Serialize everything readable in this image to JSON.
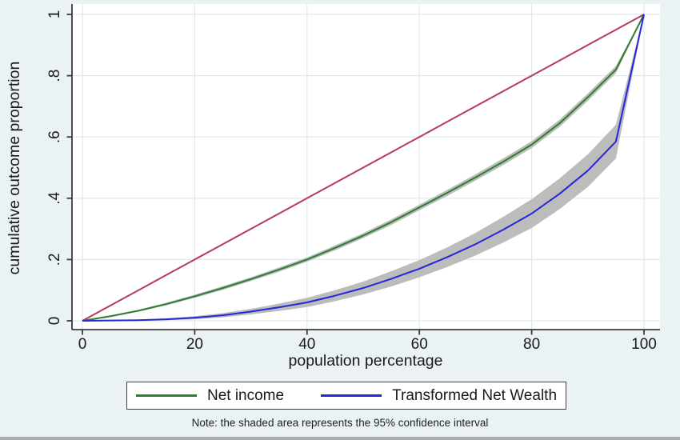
{
  "note": "Note: the shaded area represents the 95% confidence interval",
  "legend": {
    "items": [
      {
        "label": "Net income",
        "color": "#2f7d2f"
      },
      {
        "label": "Transformed Net Wealth",
        "color": "#2626d9"
      }
    ]
  },
  "colors": {
    "background": "#ebf2f4",
    "plot_background": "#ffffff",
    "grid": "#dfe9ed",
    "axis": "#3c3c3c",
    "text": "#1a1a1a",
    "ci_band": "#bcbcbc",
    "bottom_strip": "#a9adb0"
  },
  "chart_data": {
    "type": "line",
    "title": "",
    "xlabel": "population percentage",
    "ylabel": "cumulative outcome proportion",
    "xlim": [
      0,
      100
    ],
    "ylim": [
      0,
      1
    ],
    "grid": true,
    "legend_position": "below",
    "x_ticks": {
      "values": [
        0,
        20,
        40,
        60,
        80,
        100
      ],
      "labels": [
        "0",
        "20",
        "40",
        "60",
        "80",
        "100"
      ]
    },
    "y_ticks": {
      "values": [
        0,
        0.2,
        0.4,
        0.6,
        0.8,
        1
      ],
      "labels": [
        "0",
        ".2",
        ".4",
        ".6",
        ".8",
        "1"
      ]
    },
    "x": [
      0,
      5,
      10,
      15,
      20,
      25,
      30,
      35,
      40,
      45,
      50,
      55,
      60,
      65,
      70,
      75,
      80,
      85,
      90,
      95,
      100
    ],
    "series": [
      {
        "name": "Equality line",
        "color": "#b5395a",
        "in_legend": false,
        "values": [
          0,
          0.05,
          0.1,
          0.15,
          0.2,
          0.25,
          0.3,
          0.35,
          0.4,
          0.45,
          0.5,
          0.55,
          0.6,
          0.65,
          0.7,
          0.75,
          0.8,
          0.85,
          0.9,
          0.95,
          1
        ]
      },
      {
        "name": "Net income",
        "color": "#2f7d2f",
        "in_legend": true,
        "values": [
          0,
          0.015,
          0.033,
          0.055,
          0.08,
          0.107,
          0.136,
          0.167,
          0.2,
          0.238,
          0.278,
          0.322,
          0.37,
          0.418,
          0.468,
          0.52,
          0.575,
          0.645,
          0.73,
          0.82,
          1
        ],
        "ci_halfwidth": [
          0,
          0.002,
          0.003,
          0.004,
          0.005,
          0.006,
          0.006,
          0.007,
          0.007,
          0.008,
          0.008,
          0.009,
          0.009,
          0.01,
          0.01,
          0.011,
          0.011,
          0.012,
          0.012,
          0.012,
          0.002
        ]
      },
      {
        "name": "Transformed Net Wealth",
        "color": "#2626d9",
        "in_legend": true,
        "values": [
          0,
          0.001,
          0.002,
          0.005,
          0.01,
          0.018,
          0.03,
          0.044,
          0.06,
          0.082,
          0.107,
          0.137,
          0.17,
          0.208,
          0.25,
          0.298,
          0.35,
          0.415,
          0.49,
          0.585,
          1
        ],
        "ci_halfwidth": [
          0,
          0.001,
          0.002,
          0.003,
          0.005,
          0.007,
          0.009,
          0.012,
          0.015,
          0.018,
          0.021,
          0.025,
          0.028,
          0.032,
          0.037,
          0.042,
          0.047,
          0.05,
          0.053,
          0.055,
          0.004
        ]
      }
    ],
    "ci_label": "95% confidence interval"
  }
}
